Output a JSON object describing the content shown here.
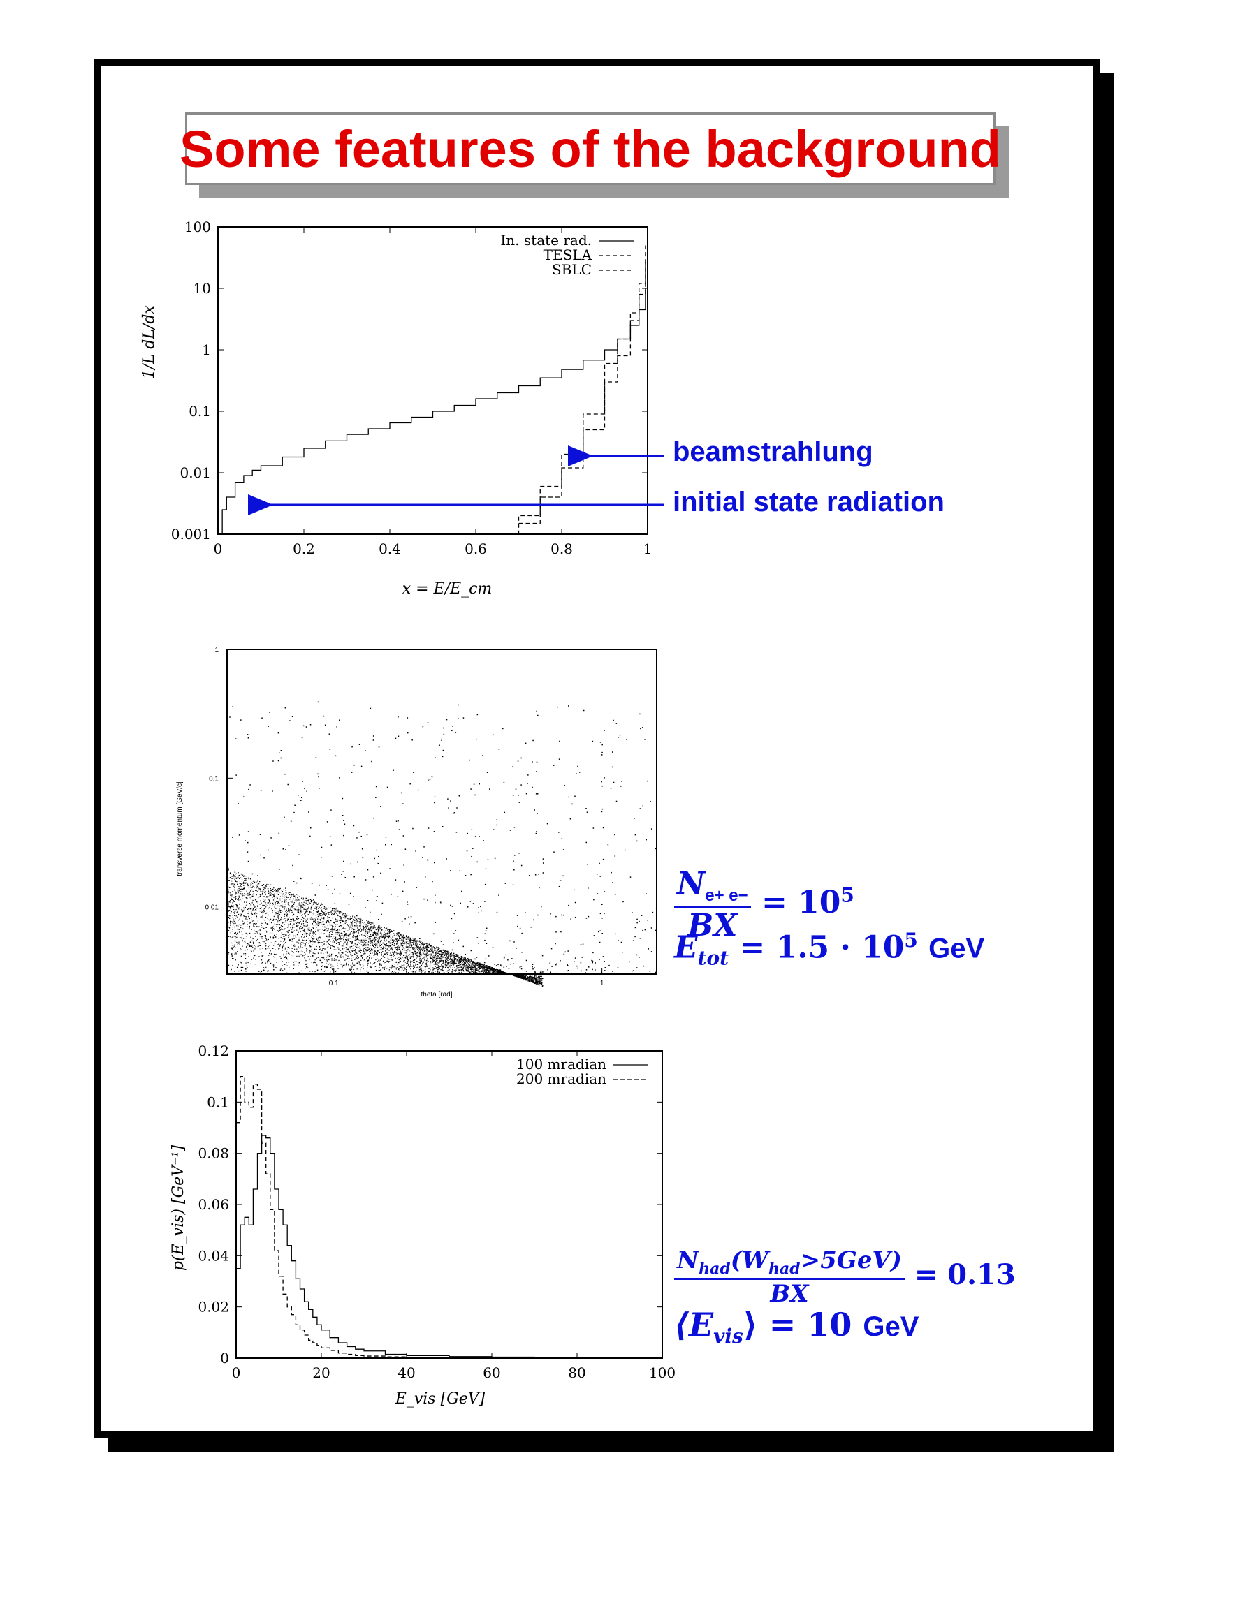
{
  "title": "Some features of the background",
  "colors": {
    "title": "#e00000",
    "annotation": "#0a10d8",
    "frame": "#000000",
    "title_shadow": "#9a9a9a"
  },
  "chart1": {
    "ylabel": "1/L dL/dx",
    "xlabel": "x = E/E_cm",
    "legend": [
      "In. state rad.",
      "TESLA",
      "SBLC"
    ],
    "annotations": [
      "beamstrahlung",
      "initial state radiation"
    ]
  },
  "chart2": {
    "ylabel": "transverse momentum [GeV/c]",
    "xlabel": "theta [rad]"
  },
  "chart3": {
    "ylabel": "p(E_vis) [GeV⁻¹]",
    "xlabel": "E_vis [GeV]",
    "legend": [
      "100 mradian",
      "200 mradian"
    ]
  },
  "formulas": {
    "pairs_num": "N",
    "pairs_num_sub": "e+ e−",
    "pairs_den": "BX",
    "pairs_rhs": "= 10",
    "pairs_exp": "5",
    "etot_lhs": "E",
    "etot_sub": "tot",
    "etot_rhs": "= 1.5 · 10",
    "etot_exp": "5",
    "etot_unit": "GeV",
    "had_num": "N",
    "had_num_sub": "had",
    "had_num_rest": "(W",
    "had_num_rest_sub": "had",
    "had_num_tail": ">5GeV)",
    "had_den": "BX",
    "had_rhs": "= 0.13",
    "evis_lhs": "⟨E",
    "evis_sub": "vis",
    "evis_rhs": "⟩ = 10",
    "evis_unit": "GeV"
  },
  "chart_data": [
    {
      "type": "line",
      "title": "",
      "xlabel": "x = E/E_cm",
      "ylabel": "1/L dL/dx",
      "yscale": "log",
      "xlim": [
        0,
        1
      ],
      "ylim": [
        0.001,
        100
      ],
      "xticks": [
        "0",
        "0.2",
        "0.4",
        "0.6",
        "0.8",
        "1"
      ],
      "yticks": [
        "0.001",
        "0.01",
        "0.1",
        "1",
        "10",
        "100"
      ],
      "legend_position": "top-right",
      "x": [
        0.002,
        0.01,
        0.02,
        0.04,
        0.06,
        0.08,
        0.1,
        0.15,
        0.2,
        0.25,
        0.3,
        0.35,
        0.4,
        0.45,
        0.5,
        0.55,
        0.6,
        0.65,
        0.7,
        0.75,
        0.8,
        0.85,
        0.9,
        0.93,
        0.96,
        0.98,
        0.995
      ],
      "series": [
        {
          "name": "In. state rad.",
          "style": "solid",
          "values": [
            0.001,
            0.0025,
            0.004,
            0.007,
            0.009,
            0.011,
            0.013,
            0.018,
            0.025,
            0.033,
            0.042,
            0.052,
            0.065,
            0.08,
            0.1,
            0.125,
            0.16,
            0.2,
            0.26,
            0.35,
            0.48,
            0.68,
            1.0,
            1.5,
            2.5,
            4.5,
            10
          ]
        },
        {
          "name": "TESLA",
          "style": "dashed",
          "values": [
            null,
            null,
            null,
            null,
            null,
            null,
            null,
            null,
            null,
            null,
            null,
            null,
            null,
            null,
            null,
            null,
            null,
            null,
            0.0015,
            0.004,
            0.012,
            0.05,
            0.3,
            0.8,
            3,
            8,
            30
          ]
        },
        {
          "name": "SBLC",
          "style": "dashed",
          "values": [
            null,
            null,
            null,
            null,
            null,
            null,
            null,
            null,
            null,
            null,
            null,
            null,
            null,
            null,
            null,
            null,
            null,
            0.001,
            0.002,
            0.006,
            0.02,
            0.09,
            0.6,
            1.5,
            4,
            12,
            50
          ]
        }
      ]
    },
    {
      "type": "scatter",
      "title": "",
      "xlabel": "theta [rad]",
      "ylabel": "transverse momentum [GeV/c]",
      "xscale": "log",
      "yscale": "log",
      "xlim": [
        0.04,
        1.6
      ],
      "ylim": [
        0.003,
        1
      ],
      "xticks": [
        "0.1",
        "1"
      ],
      "yticks": [
        "0.01",
        "0.1",
        "1"
      ],
      "note": "dense band below pT ≈ 0.02·(θ/0.04)^-0.7 boundary, sparse points above"
    },
    {
      "type": "line",
      "title": "",
      "xlabel": "E_vis [GeV]",
      "ylabel": "p(E_vis) [GeV⁻¹]",
      "xlim": [
        0,
        100
      ],
      "ylim": [
        0,
        0.12
      ],
      "xticks": [
        "0",
        "20",
        "40",
        "60",
        "80",
        "100"
      ],
      "yticks": [
        "0",
        "0.02",
        "0.04",
        "0.06",
        "0.08",
        "0.1",
        "0.12"
      ],
      "legend_position": "top-right",
      "x": [
        0,
        1,
        2,
        3,
        4,
        5,
        6,
        7,
        8,
        9,
        10,
        11,
        12,
        13,
        14,
        15,
        16,
        17,
        18,
        19,
        20,
        22,
        24,
        26,
        28,
        30,
        35,
        40,
        50,
        60,
        70,
        80,
        90,
        100
      ],
      "series": [
        {
          "name": "100 mradian",
          "style": "solid",
          "values": [
            0.035,
            0.052,
            0.055,
            0.052,
            0.066,
            0.08,
            0.087,
            0.086,
            0.08,
            0.066,
            0.058,
            0.052,
            0.044,
            0.038,
            0.031,
            0.027,
            0.022,
            0.019,
            0.016,
            0.013,
            0.011,
            0.008,
            0.006,
            0.0045,
            0.0035,
            0.0028,
            0.0015,
            0.001,
            0.0006,
            0.0004,
            0.0002,
            0.0001,
            0.0001,
            0.0
          ]
        },
        {
          "name": "200 mradian",
          "style": "dashed",
          "values": [
            0.092,
            0.11,
            0.1,
            0.098,
            0.107,
            0.105,
            0.084,
            0.072,
            0.058,
            0.042,
            0.032,
            0.025,
            0.02,
            0.017,
            0.013,
            0.011,
            0.009,
            0.007,
            0.006,
            0.005,
            0.004,
            0.003,
            0.002,
            0.0015,
            0.001,
            0.0008,
            0.0005,
            0.0003,
            0.0002,
            0.0001,
            0.0,
            0.0,
            0.0,
            0.0
          ]
        }
      ]
    }
  ]
}
